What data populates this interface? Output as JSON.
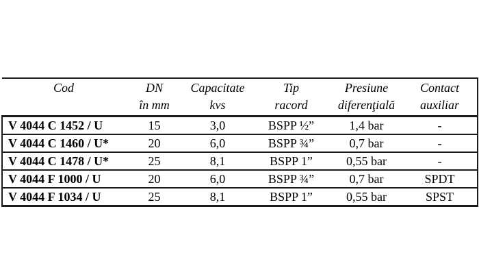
{
  "colors": {
    "background": "#ffffff",
    "border": "#1b1b1b",
    "text": "#000000"
  },
  "table": {
    "columns": [
      {
        "line1": "Cod",
        "line2": ""
      },
      {
        "line1": "DN",
        "line2": "în mm"
      },
      {
        "line1": "Capacitate",
        "line2": "kvs"
      },
      {
        "line1": "Tip",
        "line2": "racord"
      },
      {
        "line1": "Presiune",
        "line2": "diferenţială"
      },
      {
        "line1": "Contact",
        "line2": "auxiliar"
      }
    ],
    "rows": [
      [
        "V 4044 C 1452 / U",
        "15",
        "3,0",
        "BSPP ½”",
        "1,4 bar",
        "-"
      ],
      [
        "V 4044 C 1460 / U*",
        "20",
        "6,0",
        "BSPP ¾”",
        "0,7 bar",
        "-"
      ],
      [
        "V 4044 C 1478 / U*",
        "25",
        "8,1",
        "BSPP 1”",
        "0,55 bar",
        "-"
      ],
      [
        "V 4044 F 1000 / U",
        "20",
        "6,0",
        "BSPP ¾”",
        "0,7 bar",
        "SPDT"
      ],
      [
        "V 4044 F 1034 / U",
        "25",
        "8,1",
        "BSPP 1”",
        "0,55 bar",
        "SPST"
      ]
    ]
  }
}
